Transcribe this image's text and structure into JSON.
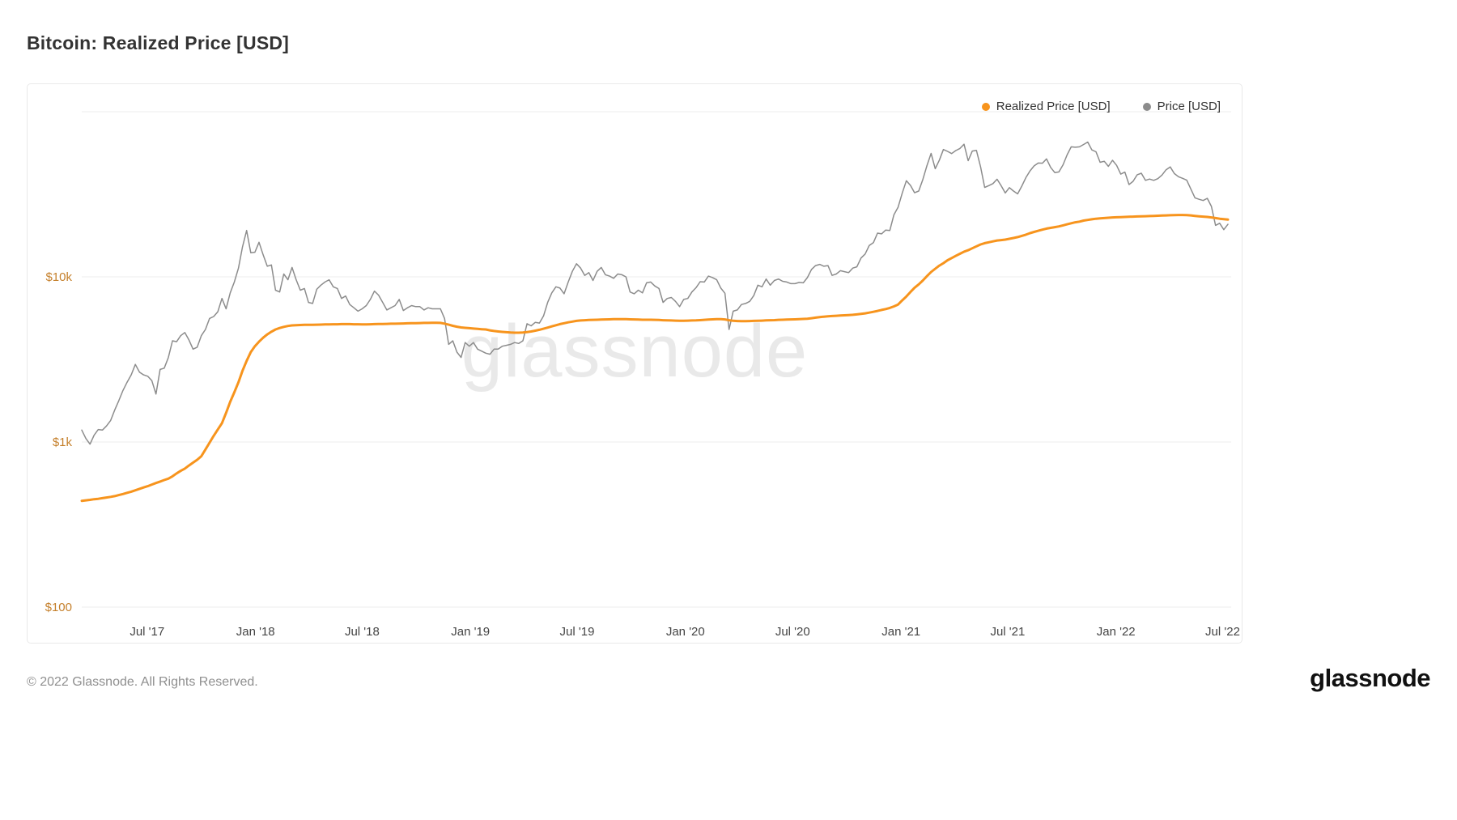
{
  "page": {
    "title": "Bitcoin: Realized Price [USD]",
    "watermark": "glassnode",
    "footer_copyright": "© 2022 Glassnode. All Rights Reserved.",
    "brand_logo_text": "glassnode"
  },
  "legend": [
    {
      "label": "Realized Price [USD]",
      "color": "#f7941d"
    },
    {
      "label": "Price [USD]",
      "color": "#8c8c8c"
    }
  ],
  "chart_data": {
    "type": "line",
    "title": "Bitcoin: Realized Price [USD]",
    "y_scale": "log",
    "grid": "horizontal",
    "legend_position": "top-right",
    "y_axis_color": "#c5802c",
    "x_axis_label_color": "#444444",
    "grid_color": "#ededed",
    "y_ticks": [
      {
        "label": "$10k",
        "value": 10000
      },
      {
        "label": "$1k",
        "value": 1000
      },
      {
        "label": "$100",
        "value": 100
      }
    ],
    "y_grid_values": [
      100000,
      10000,
      1000,
      100
    ],
    "x_ticks": [
      {
        "label": "Jul '17",
        "date": "2017-07-01"
      },
      {
        "label": "Jan '18",
        "date": "2018-01-01"
      },
      {
        "label": "Jul '18",
        "date": "2018-07-01"
      },
      {
        "label": "Jan '19",
        "date": "2019-01-01"
      },
      {
        "label": "Jul '19",
        "date": "2019-07-01"
      },
      {
        "label": "Jan '20",
        "date": "2020-01-01"
      },
      {
        "label": "Jul '20",
        "date": "2020-07-01"
      },
      {
        "label": "Jan '21",
        "date": "2021-01-01"
      },
      {
        "label": "Jul '21",
        "date": "2021-07-01"
      },
      {
        "label": "Jan '22",
        "date": "2022-01-01"
      },
      {
        "label": "Jul '22",
        "date": "2022-07-01"
      }
    ],
    "x_start_date": "2017-03-12",
    "x_step_days": 7,
    "series": [
      {
        "name": "Realized Price [USD]",
        "color": "#f7941d",
        "width": 3,
        "values": [
          440,
          443,
          446,
          450,
          453,
          457,
          461,
          465,
          470,
          477,
          484,
          492,
          500,
          510,
          520,
          530,
          540,
          552,
          564,
          576,
          588,
          600,
          620,
          645,
          668,
          690,
          720,
          750,
          780,
          820,
          900,
          990,
          1090,
          1190,
          1300,
          1500,
          1750,
          2000,
          2300,
          2700,
          3100,
          3500,
          3800,
          4050,
          4280,
          4480,
          4650,
          4800,
          4900,
          4980,
          5040,
          5080,
          5100,
          5110,
          5120,
          5120,
          5120,
          5130,
          5140,
          5150,
          5150,
          5160,
          5160,
          5170,
          5170,
          5170,
          5160,
          5160,
          5150,
          5150,
          5160,
          5170,
          5180,
          5180,
          5190,
          5200,
          5200,
          5210,
          5220,
          5230,
          5240,
          5240,
          5250,
          5260,
          5260,
          5270,
          5270,
          5260,
          5210,
          5130,
          5050,
          4990,
          4940,
          4910,
          4890,
          4860,
          4840,
          4820,
          4800,
          4740,
          4700,
          4670,
          4640,
          4620,
          4600,
          4590,
          4590,
          4600,
          4630,
          4670,
          4720,
          4780,
          4850,
          4930,
          5010,
          5090,
          5170,
          5240,
          5300,
          5360,
          5410,
          5440,
          5460,
          5480,
          5490,
          5500,
          5510,
          5520,
          5530,
          5540,
          5550,
          5550,
          5540,
          5530,
          5520,
          5510,
          5500,
          5500,
          5500,
          5490,
          5480,
          5460,
          5450,
          5440,
          5430,
          5420,
          5420,
          5430,
          5440,
          5450,
          5470,
          5490,
          5510,
          5530,
          5540,
          5540,
          5520,
          5460,
          5420,
          5400,
          5390,
          5390,
          5400,
          5410,
          5420,
          5430,
          5450,
          5460,
          5470,
          5490,
          5500,
          5510,
          5520,
          5530,
          5540,
          5560,
          5580,
          5620,
          5660,
          5700,
          5740,
          5770,
          5790,
          5810,
          5830,
          5850,
          5870,
          5890,
          5920,
          5960,
          6010,
          6070,
          6140,
          6220,
          6300,
          6380,
          6480,
          6620,
          6800,
          7200,
          7600,
          8100,
          8600,
          9000,
          9500,
          10100,
          10700,
          11200,
          11700,
          12100,
          12600,
          13000,
          13400,
          13800,
          14200,
          14500,
          14900,
          15300,
          15700,
          16000,
          16200,
          16400,
          16600,
          16700,
          16800,
          17000,
          17200,
          17400,
          17700,
          18000,
          18400,
          18700,
          19000,
          19300,
          19600,
          19800,
          20000,
          20200,
          20500,
          20800,
          21100,
          21400,
          21600,
          21900,
          22100,
          22300,
          22500,
          22600,
          22700,
          22800,
          22900,
          22950,
          23000,
          23050,
          23100,
          23150,
          23200,
          23250,
          23300,
          23350,
          23400,
          23450,
          23500,
          23550,
          23600,
          23650,
          23700,
          23700,
          23650,
          23550,
          23400,
          23250,
          23150,
          23050,
          22900,
          22700,
          22500,
          22350,
          22200
        ]
      },
      {
        "name": "Price [USD]",
        "color": "#8c8c8c",
        "width": 1.5,
        "values": [
          1180,
          1050,
          970,
          1100,
          1190,
          1180,
          1250,
          1350,
          1560,
          1780,
          2050,
          2300,
          2550,
          2950,
          2650,
          2550,
          2500,
          2350,
          1950,
          2750,
          2800,
          3250,
          4100,
          4050,
          4400,
          4600,
          4150,
          3650,
          3750,
          4400,
          4800,
          5600,
          5750,
          6150,
          7400,
          6400,
          8000,
          9300,
          11300,
          15200,
          19100,
          14000,
          14100,
          16200,
          13600,
          11600,
          11800,
          8300,
          8100,
          10400,
          9600,
          11400,
          9600,
          8300,
          8500,
          7000,
          6900,
          8400,
          8900,
          9300,
          9600,
          8700,
          8500,
          7400,
          7650,
          6800,
          6500,
          6200,
          6400,
          6700,
          7300,
          8200,
          7750,
          7000,
          6300,
          6500,
          6700,
          7300,
          6250,
          6500,
          6700,
          6600,
          6600,
          6300,
          6500,
          6400,
          6400,
          6400,
          5600,
          3900,
          4100,
          3500,
          3250,
          4000,
          3800,
          4000,
          3650,
          3550,
          3450,
          3400,
          3650,
          3650,
          3800,
          3850,
          3900,
          4000,
          3950,
          4100,
          5200,
          5050,
          5300,
          5250,
          5800,
          7000,
          8000,
          8700,
          8550,
          7900,
          9300,
          10800,
          12000,
          11300,
          10200,
          10600,
          9500,
          10800,
          11400,
          10300,
          10100,
          9800,
          10400,
          10300,
          10000,
          8100,
          7900,
          8300,
          8000,
          9200,
          9300,
          8800,
          8500,
          7000,
          7400,
          7500,
          7100,
          6600,
          7300,
          7400,
          8100,
          8600,
          9350,
          9300,
          10100,
          9900,
          9600,
          8550,
          7950,
          4800,
          6200,
          6300,
          6800,
          6900,
          7100,
          7700,
          8900,
          8700,
          9700,
          8900,
          9500,
          9700,
          9400,
          9300,
          9100,
          9100,
          9250,
          9200,
          9900,
          11100,
          11700,
          11900,
          11600,
          11700,
          10200,
          10400,
          10900,
          10750,
          10600,
          11300,
          11500,
          13000,
          13750,
          15500,
          16100,
          18400,
          18200,
          19200,
          19100,
          23800,
          26400,
          32100,
          38200,
          35800,
          32300,
          33100,
          38900,
          47200,
          55900,
          45200,
          50900,
          59000,
          57500,
          55800,
          58200,
          59900,
          63500,
          50500,
          57800,
          58300,
          46400,
          34800,
          35700,
          36700,
          39000,
          35600,
          32200,
          34700,
          33100,
          31800,
          35400,
          39900,
          43800,
          47000,
          48900,
          48800,
          51800,
          46000,
          42800,
          43200,
          47700,
          54900,
          61300,
          60900,
          61300,
          63300,
          65500,
          58700,
          57200,
          49400,
          50100,
          46700,
          50800,
          47300,
          41900,
          43100,
          36200,
          37900,
          41500,
          42400,
          38400,
          39100,
          38400,
          39300,
          41300,
          44500,
          46300,
          42200,
          40400,
          39500,
          38500,
          34000,
          30100,
          29500,
          29000,
          29900,
          26700,
          20500,
          21100,
          19300,
          20800
        ]
      }
    ]
  }
}
